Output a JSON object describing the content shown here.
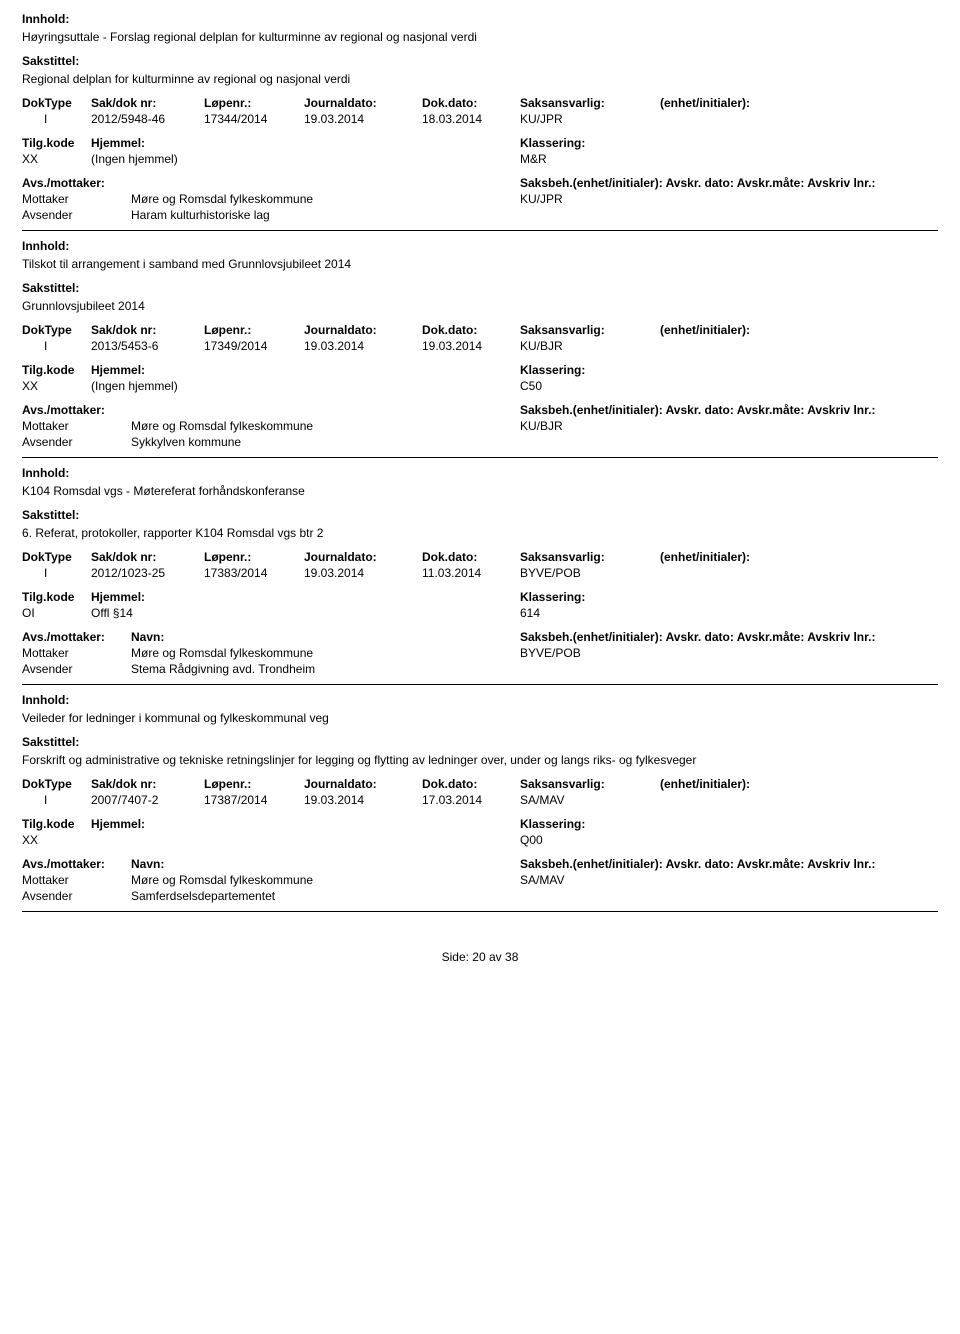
{
  "labels": {
    "innhold": "Innhold:",
    "sakstittel": "Sakstittel:",
    "doktype": "DokType",
    "saknr": "Sak/dok nr:",
    "lopenr": "Løpenr.:",
    "journaldato": "Journaldato:",
    "dokdato": "Dok.dato:",
    "saksansvarlig": "Saksansvarlig:",
    "enhet": "(enhet/initialer):",
    "tilgkode": "Tilg.kode",
    "hjemmel": "Hjemmel:",
    "klassering": "Klassering:",
    "avsmottaker": "Avs./mottaker:",
    "navn": "Navn:",
    "saksbeh": "Saksbeh.(enhet/initialer): Avskr. dato:  Avskr.måte: Avskriv lnr.:",
    "mottaker": "Mottaker",
    "avsender": "Avsender"
  },
  "records": [
    {
      "innhold": "Høyringsuttale - Forslag regional delplan for kulturminne av regional og nasjonal verdi",
      "sakstittel": "Regional delplan for kulturminne av regional og nasjonal verdi",
      "doktype": "I",
      "saknr": "2012/5948-46",
      "lopenr": "17344/2014",
      "journaldato": "19.03.2014",
      "dokdato": "18.03.2014",
      "saksansvarlig": "KU/JPR",
      "tilgkode": "XX",
      "hjemmel": "(Ingen hjemmel)",
      "klassering": "M&R",
      "show_avs_navn_label": false,
      "mottaker_name": "Møre og Romsdal fylkeskommune",
      "mottaker_init": "KU/JPR",
      "avsender_name": "Haram kulturhistoriske lag"
    },
    {
      "innhold": "Tilskot til arrangement i samband med Grunnlovsjubileet 2014",
      "sakstittel": "Grunnlovsjubileet 2014",
      "doktype": "I",
      "saknr": "2013/5453-6",
      "lopenr": "17349/2014",
      "journaldato": "19.03.2014",
      "dokdato": "19.03.2014",
      "saksansvarlig": "KU/BJR",
      "tilgkode": "XX",
      "hjemmel": "(Ingen hjemmel)",
      "klassering": "C50",
      "show_avs_navn_label": false,
      "mottaker_name": "Møre og Romsdal fylkeskommune",
      "mottaker_init": "KU/BJR",
      "avsender_name": "Sykkylven kommune"
    },
    {
      "innhold": "K104 Romsdal vgs - Møtereferat forhåndskonferanse",
      "sakstittel": "6. Referat, protokoller, rapporter K104 Romsdal vgs btr 2",
      "doktype": "I",
      "saknr": "2012/1023-25",
      "lopenr": "17383/2014",
      "journaldato": "19.03.2014",
      "dokdato": "11.03.2014",
      "saksansvarlig": "BYVE/POB",
      "tilgkode": "OI",
      "hjemmel": "Offl §14",
      "klassering": "614",
      "show_avs_navn_label": true,
      "mottaker_name": "Møre og Romsdal fylkeskommune",
      "mottaker_init": "BYVE/POB",
      "avsender_name": "Stema Rådgivning avd. Trondheim"
    },
    {
      "innhold": "Veileder for ledninger i kommunal og fylkeskommunal veg",
      "sakstittel": "Forskrift og administrative og tekniske retningslinjer for legging og flytting av ledninger over, under og langs riks- og fylkesveger",
      "doktype": "I",
      "saknr": "2007/7407-2",
      "lopenr": "17387/2014",
      "journaldato": "19.03.2014",
      "dokdato": "17.03.2014",
      "saksansvarlig": "SA/MAV",
      "tilgkode": "XX",
      "hjemmel": "",
      "klassering": "Q00",
      "show_avs_navn_label": true,
      "mottaker_name": "Møre og Romsdal fylkeskommune",
      "mottaker_init": "SA/MAV",
      "avsender_name": "Samferdselsdepartementet"
    }
  ],
  "footer": {
    "prefix": "Side:",
    "current": "20",
    "sep": "av",
    "total": "38"
  }
}
